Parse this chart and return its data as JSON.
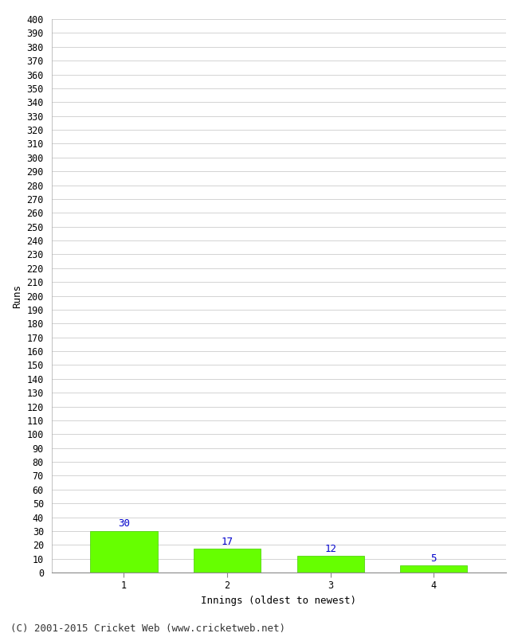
{
  "categories": [
    "1",
    "2",
    "3",
    "4"
  ],
  "values": [
    30,
    17,
    12,
    5
  ],
  "bar_color": "#66ff00",
  "bar_edge_color": "#44cc00",
  "label_color": "#0000cc",
  "xlabel": "Innings (oldest to newest)",
  "ylabel": "Runs",
  "ylim": [
    0,
    400
  ],
  "ytick_step": 10,
  "background_color": "#ffffff",
  "grid_color": "#cccccc",
  "footer": "(C) 2001-2015 Cricket Web (www.cricketweb.net)",
  "label_fontsize": 9,
  "axis_label_fontsize": 9,
  "tick_fontsize": 8.5,
  "footer_fontsize": 9,
  "bar_width": 0.65
}
